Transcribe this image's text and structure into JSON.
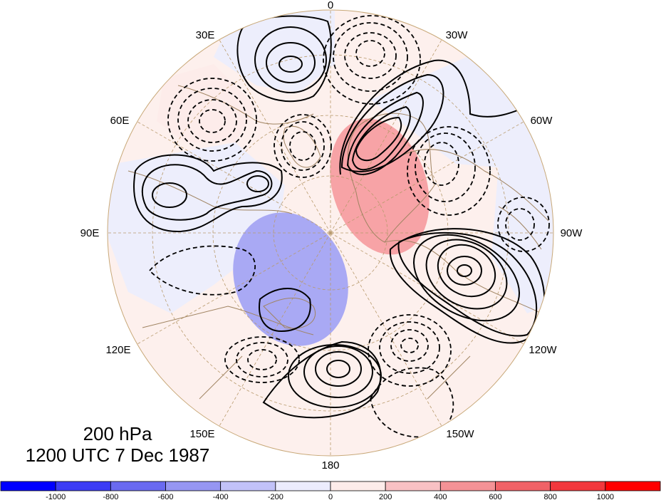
{
  "map": {
    "projection": "north-polar-stereographic",
    "field_shading": "anomaly",
    "lon_labels": [
      {
        "id": "lon-0",
        "text": "0"
      },
      {
        "id": "lon-30w",
        "text": "30W"
      },
      {
        "id": "lon-60w",
        "text": "60W"
      },
      {
        "id": "lon-90w",
        "text": "90W"
      },
      {
        "id": "lon-120w",
        "text": "120W"
      },
      {
        "id": "lon-150w",
        "text": "150W"
      },
      {
        "id": "lon-180",
        "text": "180"
      },
      {
        "id": "lon-150e",
        "text": "150E"
      },
      {
        "id": "lon-120e",
        "text": "120E"
      },
      {
        "id": "lon-90e",
        "text": "90E"
      },
      {
        "id": "lon-60e",
        "text": "60E"
      },
      {
        "id": "lon-30e",
        "text": "30E"
      }
    ],
    "colors": {
      "coast": "#a08462",
      "grid": "#b89a6c",
      "contour": "#000000",
      "positive_anomaly": "#f7a3a6",
      "negative_anomaly": "#a9a9f4",
      "weak_positive": "#fdeeea",
      "weak_negative": "#edeefc"
    }
  },
  "caption": {
    "level": "200 hPa",
    "time": "1200 UTC 7 Dec 1987"
  },
  "colorbar": {
    "colors": [
      "#0000ff",
      "#3c3cf5",
      "#6a6af0",
      "#9696f2",
      "#c2c2f8",
      "#ececfd",
      "#fdecea",
      "#f8c1c4",
      "#f49296",
      "#f06267",
      "#f2383d",
      "#ff0000"
    ],
    "labels": [
      "-1000",
      "-800",
      "-600",
      "-400",
      "-200",
      "0",
      "200",
      "400",
      "600",
      "800",
      "1000"
    ]
  }
}
